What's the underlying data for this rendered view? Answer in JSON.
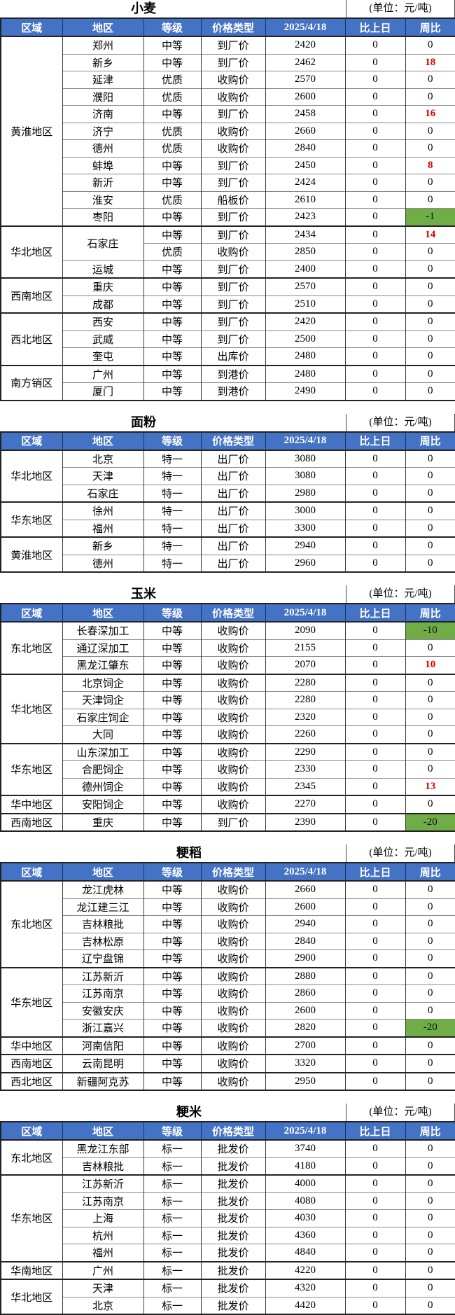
{
  "columns": [
    "区域",
    "地区",
    "等级",
    "价格类型",
    "2025/4/18",
    "比上日",
    "周比"
  ],
  "date_column": "2025/4/18",
  "colors": {
    "header_bg": "#4472C4",
    "header_text": "#FFFFFF",
    "week_up_text": "#E00000",
    "week_down_bg": "#70AD47"
  },
  "sections": [
    {
      "title": "小麦",
      "unit": "(单位：元/吨)",
      "regions": [
        {
          "name": "黄淮地区",
          "rows": [
            {
              "area": "郑州",
              "grade": "中等",
              "price_type": "到厂价",
              "price": "2420",
              "day": "0",
              "week": "0",
              "week_flag": null
            },
            {
              "area": "新乡",
              "grade": "中等",
              "price_type": "到厂价",
              "price": "2462",
              "day": "0",
              "week": "18",
              "week_flag": "up"
            },
            {
              "area": "延津",
              "grade": "优质",
              "price_type": "收购价",
              "price": "2570",
              "day": "0",
              "week": "0",
              "week_flag": null
            },
            {
              "area": "濮阳",
              "grade": "优质",
              "price_type": "收购价",
              "price": "2600",
              "day": "0",
              "week": "0",
              "week_flag": null
            },
            {
              "area": "济南",
              "grade": "中等",
              "price_type": "到厂价",
              "price": "2458",
              "day": "0",
              "week": "16",
              "week_flag": "up"
            },
            {
              "area": "济宁",
              "grade": "优质",
              "price_type": "收购价",
              "price": "2660",
              "day": "0",
              "week": "0",
              "week_flag": null
            },
            {
              "area": "德州",
              "grade": "优质",
              "price_type": "收购价",
              "price": "2840",
              "day": "0",
              "week": "0",
              "week_flag": null
            },
            {
              "area": "蚌埠",
              "grade": "中等",
              "price_type": "到厂价",
              "price": "2450",
              "day": "0",
              "week": "8",
              "week_flag": "up"
            },
            {
              "area": "新沂",
              "grade": "中等",
              "price_type": "到厂价",
              "price": "2424",
              "day": "0",
              "week": "0",
              "week_flag": null
            },
            {
              "area": "淮安",
              "grade": "优质",
              "price_type": "船板价",
              "price": "2610",
              "day": "0",
              "week": "0",
              "week_flag": null
            },
            {
              "area": "枣阳",
              "grade": "中等",
              "price_type": "到厂价",
              "price": "2423",
              "day": "0",
              "week": "-1",
              "week_flag": "down"
            }
          ]
        },
        {
          "name": "华北地区",
          "rows": [
            {
              "area": "石家庄",
              "area_rowspan": 2,
              "grade": "中等",
              "price_type": "到厂价",
              "price": "2434",
              "day": "0",
              "week": "14",
              "week_flag": "up"
            },
            {
              "area": null,
              "grade": "优质",
              "price_type": "收购价",
              "price": "2850",
              "day": "0",
              "week": "0",
              "week_flag": null
            },
            {
              "area": "运城",
              "grade": "中等",
              "price_type": "到厂价",
              "price": "2400",
              "day": "0",
              "week": "0",
              "week_flag": null
            }
          ]
        },
        {
          "name": "西南地区",
          "rows": [
            {
              "area": "重庆",
              "grade": "中等",
              "price_type": "到厂价",
              "price": "2570",
              "day": "0",
              "week": "0",
              "week_flag": null
            },
            {
              "area": "成都",
              "grade": "中等",
              "price_type": "到厂价",
              "price": "2510",
              "day": "0",
              "week": "0",
              "week_flag": null
            }
          ]
        },
        {
          "name": "西北地区",
          "rows": [
            {
              "area": "西安",
              "grade": "中等",
              "price_type": "到厂价",
              "price": "2420",
              "day": "0",
              "week": "0",
              "week_flag": null
            },
            {
              "area": "武威",
              "grade": "中等",
              "price_type": "到厂价",
              "price": "2500",
              "day": "0",
              "week": "0",
              "week_flag": null
            },
            {
              "area": "奎屯",
              "grade": "中等",
              "price_type": "出库价",
              "price": "2480",
              "day": "0",
              "week": "0",
              "week_flag": null
            }
          ]
        },
        {
          "name": "南方销区",
          "rows": [
            {
              "area": "广州",
              "grade": "中等",
              "price_type": "到港价",
              "price": "2480",
              "day": "0",
              "week": "0",
              "week_flag": null
            },
            {
              "area": "厦门",
              "grade": "中等",
              "price_type": "到港价",
              "price": "2490",
              "day": "0",
              "week": "0",
              "week_flag": null
            }
          ]
        }
      ]
    },
    {
      "title": "面粉",
      "unit": "(单位：元/吨)",
      "regions": [
        {
          "name": "华北地区",
          "rows": [
            {
              "area": "北京",
              "grade": "特一",
              "price_type": "出厂价",
              "price": "3080",
              "day": "0",
              "week": "0",
              "week_flag": null
            },
            {
              "area": "天津",
              "grade": "特一",
              "price_type": "出厂价",
              "price": "3080",
              "day": "0",
              "week": "0",
              "week_flag": null
            },
            {
              "area": "石家庄",
              "grade": "特一",
              "price_type": "出厂价",
              "price": "2980",
              "day": "0",
              "week": "0",
              "week_flag": null
            }
          ]
        },
        {
          "name": "华东地区",
          "rows": [
            {
              "area": "徐州",
              "grade": "特一",
              "price_type": "出厂价",
              "price": "3000",
              "day": "0",
              "week": "0",
              "week_flag": null
            },
            {
              "area": "福州",
              "grade": "特一",
              "price_type": "出厂价",
              "price": "3300",
              "day": "0",
              "week": "0",
              "week_flag": null
            }
          ]
        },
        {
          "name": "黄淮地区",
          "rows": [
            {
              "area": "新乡",
              "grade": "特一",
              "price_type": "出厂价",
              "price": "2940",
              "day": "0",
              "week": "0",
              "week_flag": null
            },
            {
              "area": "德州",
              "grade": "特一",
              "price_type": "出厂价",
              "price": "2960",
              "day": "0",
              "week": "0",
              "week_flag": null
            }
          ]
        }
      ]
    },
    {
      "title": "玉米",
      "unit": "(单位：元/吨)",
      "regions": [
        {
          "name": "东北地区",
          "rows": [
            {
              "area": "长春深加工",
              "grade": "中等",
              "price_type": "收购价",
              "price": "2090",
              "day": "0",
              "week": "-10",
              "week_flag": "down"
            },
            {
              "area": "通辽深加工",
              "grade": "中等",
              "price_type": "收购价",
              "price": "2155",
              "day": "0",
              "week": "0",
              "week_flag": null
            },
            {
              "area": "黑龙江肇东",
              "grade": "中等",
              "price_type": "收购价",
              "price": "2070",
              "day": "0",
              "week": "10",
              "week_flag": "up"
            }
          ]
        },
        {
          "name": "华北地区",
          "rows": [
            {
              "area": "北京饲企",
              "grade": "中等",
              "price_type": "收购价",
              "price": "2280",
              "day": "0",
              "week": "0",
              "week_flag": null
            },
            {
              "area": "天津饲企",
              "grade": "中等",
              "price_type": "收购价",
              "price": "2280",
              "day": "0",
              "week": "0",
              "week_flag": null
            },
            {
              "area": "石家庄饲企",
              "grade": "中等",
              "price_type": "收购价",
              "price": "2320",
              "day": "0",
              "week": "0",
              "week_flag": null
            },
            {
              "area": "大同",
              "grade": "中等",
              "price_type": "收购价",
              "price": "2260",
              "day": "0",
              "week": "0",
              "week_flag": null
            }
          ]
        },
        {
          "name": "华东地区",
          "rows": [
            {
              "area": "山东深加工",
              "grade": "中等",
              "price_type": "收购价",
              "price": "2290",
              "day": "0",
              "week": "0",
              "week_flag": null
            },
            {
              "area": "合肥饲企",
              "grade": "中等",
              "price_type": "收购价",
              "price": "2330",
              "day": "0",
              "week": "0",
              "week_flag": null
            },
            {
              "area": "德州饲企",
              "grade": "中等",
              "price_type": "收购价",
              "price": "2345",
              "day": "0",
              "week": "13",
              "week_flag": "up"
            }
          ]
        },
        {
          "name": "华中地区",
          "rows": [
            {
              "area": "安阳饲企",
              "grade": "中等",
              "price_type": "收购价",
              "price": "2270",
              "day": "0",
              "week": "0",
              "week_flag": null
            }
          ]
        },
        {
          "name": "西南地区",
          "rows": [
            {
              "area": "重庆",
              "grade": "中等",
              "price_type": "到厂价",
              "price": "2390",
              "day": "0",
              "week": "-20",
              "week_flag": "down"
            }
          ]
        }
      ]
    },
    {
      "title": "粳稻",
      "unit": "(单位：元/吨)",
      "regions": [
        {
          "name": "东北地区",
          "rows": [
            {
              "area": "龙江虎林",
              "grade": "中等",
              "price_type": "收购价",
              "price": "2660",
              "day": "0",
              "week": "0",
              "week_flag": null
            },
            {
              "area": "龙江建三江",
              "grade": "中等",
              "price_type": "收购价",
              "price": "2600",
              "day": "0",
              "week": "0",
              "week_flag": null
            },
            {
              "area": "吉林粮批",
              "grade": "中等",
              "price_type": "收购价",
              "price": "2940",
              "day": "0",
              "week": "0",
              "week_flag": null
            },
            {
              "area": "吉林松原",
              "grade": "中等",
              "price_type": "收购价",
              "price": "2840",
              "day": "0",
              "week": "0",
              "week_flag": null
            },
            {
              "area": "辽宁盘锦",
              "grade": "中等",
              "price_type": "收购价",
              "price": "2900",
              "day": "0",
              "week": "0",
              "week_flag": null
            }
          ]
        },
        {
          "name": "华东地区",
          "rows": [
            {
              "area": "江苏新沂",
              "grade": "中等",
              "price_type": "收购价",
              "price": "2880",
              "day": "0",
              "week": "0",
              "week_flag": null
            },
            {
              "area": "江苏南京",
              "grade": "中等",
              "price_type": "收购价",
              "price": "2860",
              "day": "0",
              "week": "0",
              "week_flag": null
            },
            {
              "area": "安徽安庆",
              "grade": "中等",
              "price_type": "收购价",
              "price": "2600",
              "day": "0",
              "week": "0",
              "week_flag": null
            },
            {
              "area": "浙江嘉兴",
              "grade": "中等",
              "price_type": "收购价",
              "price": "2820",
              "day": "0",
              "week": "-20",
              "week_flag": "down"
            }
          ]
        },
        {
          "name": "华中地区",
          "rows": [
            {
              "area": "河南信阳",
              "grade": "中等",
              "price_type": "收购价",
              "price": "2700",
              "day": "0",
              "week": "0",
              "week_flag": null
            }
          ]
        },
        {
          "name": "西南地区",
          "rows": [
            {
              "area": "云南昆明",
              "grade": "中等",
              "price_type": "收购价",
              "price": "3320",
              "day": "0",
              "week": "0",
              "week_flag": null
            }
          ]
        },
        {
          "name": "西北地区",
          "rows": [
            {
              "area": "新疆阿克苏",
              "grade": "中等",
              "price_type": "收购价",
              "price": "2950",
              "day": "0",
              "week": "0",
              "week_flag": null
            }
          ]
        }
      ]
    },
    {
      "title": "粳米",
      "unit": "(单位：元/吨)",
      "regions": [
        {
          "name": "东北地区",
          "rows": [
            {
              "area": "黑龙江东部",
              "grade": "标一",
              "price_type": "批发价",
              "price": "3740",
              "day": "0",
              "week": "0",
              "week_flag": null
            },
            {
              "area": "吉林粮批",
              "grade": "标一",
              "price_type": "批发价",
              "price": "4180",
              "day": "0",
              "week": "0",
              "week_flag": null
            }
          ]
        },
        {
          "name": "华东地区",
          "rows": [
            {
              "area": "江苏新沂",
              "grade": "标一",
              "price_type": "批发价",
              "price": "4000",
              "day": "0",
              "week": "0",
              "week_flag": null
            },
            {
              "area": "江苏南京",
              "grade": "标一",
              "price_type": "批发价",
              "price": "4080",
              "day": "0",
              "week": "0",
              "week_flag": null
            },
            {
              "area": "上海",
              "grade": "标一",
              "price_type": "批发价",
              "price": "4030",
              "day": "0",
              "week": "0",
              "week_flag": null
            },
            {
              "area": "杭州",
              "grade": "标一",
              "price_type": "批发价",
              "price": "4360",
              "day": "0",
              "week": "0",
              "week_flag": null
            },
            {
              "area": "福州",
              "grade": "标一",
              "price_type": "批发价",
              "price": "4840",
              "day": "0",
              "week": "0",
              "week_flag": null
            }
          ]
        },
        {
          "name": "华南地区",
          "rows": [
            {
              "area": "广州",
              "grade": "标一",
              "price_type": "批发价",
              "price": "4220",
              "day": "0",
              "week": "0",
              "week_flag": null
            }
          ]
        },
        {
          "name": "华北地区",
          "rows": [
            {
              "area": "天津",
              "grade": "标一",
              "price_type": "批发价",
              "price": "4320",
              "day": "0",
              "week": "0",
              "week_flag": null
            },
            {
              "area": "北京",
              "grade": "标一",
              "price_type": "批发价",
              "price": "4420",
              "day": "0",
              "week": "0",
              "week_flag": null
            }
          ]
        }
      ]
    }
  ]
}
